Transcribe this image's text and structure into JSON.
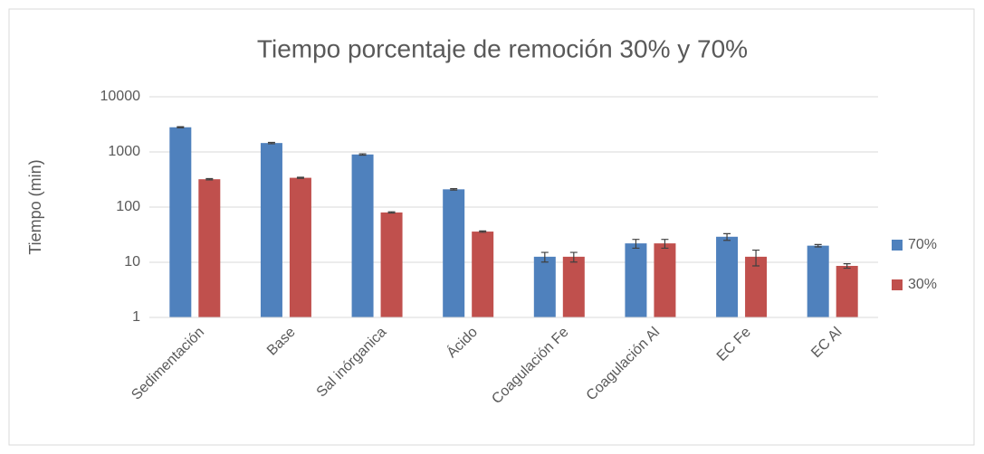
{
  "chart_data": {
    "type": "bar",
    "title": "Tiempo porcentaje de remoción 30% y 70%",
    "y_label": "Tiempo (min)",
    "categories": [
      "Sedimentación",
      "Base",
      "Sal inórganica",
      "Ácido",
      "Coagulación Fe",
      "Coagulación Al",
      "EC Fe",
      "EC Al"
    ],
    "series": [
      {
        "name": "70%",
        "color": "#4f81bd",
        "values": [
          2800,
          1450,
          900,
          210,
          12.6,
          22,
          29,
          20
        ],
        "errors": [
          60,
          40,
          25,
          6,
          2.5,
          4,
          4,
          1
        ]
      },
      {
        "name": "30%",
        "color": "#c0504d",
        "values": [
          320,
          340,
          80,
          36,
          12.6,
          22,
          12.6,
          8.6
        ],
        "errors": [
          8,
          8,
          2,
          1,
          2.5,
          4,
          4,
          0.8
        ]
      }
    ],
    "ylim": [
      1,
      10000
    ],
    "yticks": [
      1,
      10,
      100,
      1000,
      10000
    ],
    "log_y": true,
    "grid": true,
    "legend": "right"
  }
}
